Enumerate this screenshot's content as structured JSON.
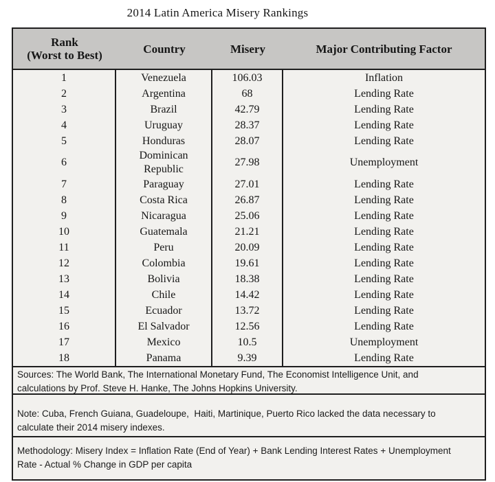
{
  "title": "2014 Latin America Misery Rankings",
  "header": {
    "rank_line1": "Rank",
    "rank_line2": "(Worst to Best)",
    "country": "Country",
    "misery": "Misery",
    "factor": "Major Contributing Factor"
  },
  "chart_data": {
    "type": "table",
    "title": "2014 Latin America Misery Rankings",
    "columns": [
      "Rank (Worst to Best)",
      "Country",
      "Misery",
      "Major Contributing Factor"
    ],
    "rows": [
      [
        1,
        "Venezuela",
        106.03,
        "Inflation"
      ],
      [
        2,
        "Argentina",
        68,
        "Lending Rate"
      ],
      [
        3,
        "Brazil",
        42.79,
        "Lending Rate"
      ],
      [
        4,
        "Uruguay",
        28.37,
        "Lending Rate"
      ],
      [
        5,
        "Honduras",
        28.07,
        "Lending Rate"
      ],
      [
        6,
        "Dominican Republic",
        27.98,
        "Unemployment"
      ],
      [
        7,
        "Paraguay",
        27.01,
        "Lending Rate"
      ],
      [
        8,
        "Costa Rica",
        26.87,
        "Lending Rate"
      ],
      [
        9,
        "Nicaragua",
        25.06,
        "Lending Rate"
      ],
      [
        10,
        "Guatemala",
        21.21,
        "Lending Rate"
      ],
      [
        11,
        "Peru",
        20.09,
        "Lending Rate"
      ],
      [
        12,
        "Colombia",
        19.61,
        "Lending Rate"
      ],
      [
        13,
        "Bolivia",
        18.38,
        "Lending Rate"
      ],
      [
        14,
        "Chile",
        14.42,
        "Lending Rate"
      ],
      [
        15,
        "Ecuador",
        13.72,
        "Lending Rate"
      ],
      [
        16,
        "El Salvador",
        12.56,
        "Lending Rate"
      ],
      [
        17,
        "Mexico",
        10.5,
        "Unemployment"
      ],
      [
        18,
        "Panama",
        9.39,
        "Lending Rate"
      ]
    ]
  },
  "footer": {
    "sources": "Sources: The World Bank, The International Monetary Fund, The Economist Intelligence Unit, and calculations by Prof. Steve H. Hanke, The Johns Hopkins University.",
    "note": "Note: Cuba, French Guiana, Guadeloupe,  Haiti, Martinique, Puerto Rico lacked the data necessary to calculate their 2014 misery indexes.",
    "methodology": "Methodology: Misery Index = Inflation Rate (End of Year) + Bank Lending Interest Rates + Unemployment Rate - Actual % Change in GDP per capita"
  },
  "colors": {
    "header_bg": "#c7c6c4",
    "body_bg": "#f2f1ee",
    "border": "#1e1e1e",
    "text": "#161616",
    "page_bg": "#ffffff"
  }
}
